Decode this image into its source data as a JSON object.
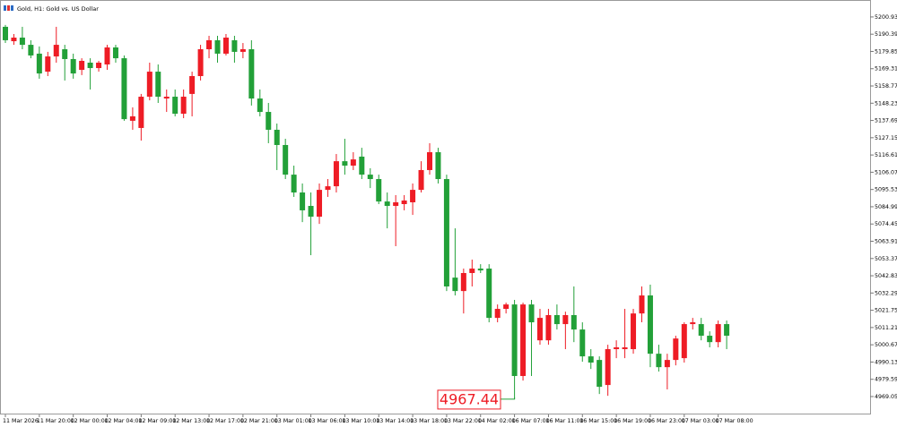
{
  "chart_data": {
    "type": "candlestick",
    "title": "Gold, H1:  Gold vs. US Dollar",
    "annotation": "4967.44",
    "up_color": "#ee1c25",
    "down_color": "#22a038",
    "categories": [
      "11 Mar 2026",
      null,
      null,
      null,
      "11 Mar 20:00",
      null,
      null,
      null,
      "12 Mar 00:00",
      null,
      null,
      null,
      "12 Mar 04:00",
      null,
      null,
      null,
      "12 Mar 09:00",
      null,
      null,
      null,
      "12 Mar 13:00",
      null,
      null,
      null,
      "12 Mar 17:00",
      null,
      null,
      null,
      "12 Mar 21:00",
      null,
      null,
      null,
      "13 Mar 01:00",
      null,
      null,
      null,
      "13 Mar 06:00",
      null,
      null,
      null,
      "13 Mar 10:00",
      null,
      null,
      null,
      "13 Mar 14:00",
      null,
      null,
      null,
      "13 Mar 18:00",
      null,
      null,
      null,
      "13 Mar 22:00",
      null,
      null,
      null,
      "14 Mar 02:00",
      null,
      null,
      null,
      "16 Mar 07:00",
      null,
      null,
      null,
      "16 Mar 11:00",
      null,
      null,
      null,
      "16 Mar 15:00",
      null,
      null,
      null,
      "16 Mar 19:00",
      null,
      null,
      null,
      "16 Mar 23:00",
      null,
      null,
      null,
      "17 Mar 03:00",
      null,
      null,
      null,
      "17 Mar 08:00",
      null
    ],
    "open": [
      5194.9,
      5186.1,
      5188.3,
      5183.9,
      5178.5,
      5167.5,
      5176.8,
      5181.2,
      5175.2,
      5168.6,
      5173.0,
      5169.7,
      5171.9,
      5182.3,
      5175.7,
      5137.5,
      5133.1,
      5152.2,
      5167.5,
      5151.1,
      5152.2,
      5141.8,
      5153.9,
      5164.8,
      5181.2,
      5186.7,
      5178.5,
      5186.7,
      5179.6,
      5181.2,
      5151.1,
      5142.9,
      5132.0,
      5122.7,
      5104.6,
      5093.7,
      5085.5,
      5078.9,
      5095.3,
      5097.5,
      5112.8,
      5110.1,
      5115.6,
      5104.6,
      5101.9,
      5088.2,
      5085.5,
      5086.6,
      5087.7,
      5095.3,
      5107.4,
      5118.3,
      5101.9,
      5041.7,
      5033.5,
      5044.5,
      5047.2,
      5047.2,
      5017.1,
      5022.6,
      5025.3,
      4981.6,
      5025.3,
      5003.4,
      5003.4,
      5018.8,
      5013.3,
      5018.8,
      5010.0,
      4993.6,
      4991.4,
      4976.1,
      4998.0,
      4998.0,
      4998.0,
      5019.8,
      5030.8,
      4995.2,
      4987.0,
      4991.4,
      4992.5,
      5013.3,
      5013.3,
      5006.2,
      5002.3,
      5013.3
    ],
    "high": [
      5196.0,
      5190.5,
      5194.9,
      5186.7,
      5182.9,
      5179.6,
      5194.9,
      5183.9,
      5178.5,
      5175.7,
      5175.7,
      5174.1,
      5183.9,
      5183.9,
      5177.4,
      5145.7,
      5153.9,
      5173.0,
      5171.9,
      5156.6,
      5156.6,
      5156.6,
      5167.5,
      5183.9,
      5189.4,
      5189.4,
      5190.5,
      5189.4,
      5185.0,
      5186.7,
      5156.6,
      5148.4,
      5135.8,
      5126.5,
      5110.1,
      5099.2,
      5093.7,
      5099.2,
      5101.9,
      5117.2,
      5126.5,
      5118.3,
      5121.0,
      5108.5,
      5104.6,
      5093.7,
      5092.1,
      5092.1,
      5099.2,
      5112.8,
      5123.8,
      5121.0,
      5104.6,
      5071.8,
      5047.2,
      5052.7,
      5049.9,
      5049.9,
      5025.3,
      5026.4,
      5028.1,
      5026.4,
      5028.1,
      5022.6,
      5022.6,
      5025.3,
      5020.9,
      5036.3,
      5014.4,
      4998.0,
      4993.6,
      5000.7,
      5003.4,
      5022.6,
      5022.6,
      5036.3,
      5037.4,
      5000.7,
      4995.2,
      5006.2,
      5014.4,
      5017.1,
      5017.1,
      5008.9,
      5015.5,
      5015.5
    ],
    "low": [
      5185.0,
      5183.9,
      5181.2,
      5175.7,
      5163.2,
      5164.8,
      5173.0,
      5162.1,
      5163.2,
      5165.4,
      5156.6,
      5167.5,
      5168.6,
      5173.0,
      5137.5,
      5132.0,
      5125.4,
      5150.0,
      5148.4,
      5142.9,
      5140.2,
      5139.1,
      5140.2,
      5162.1,
      5175.7,
      5173.0,
      5177.4,
      5173.0,
      5175.7,
      5146.8,
      5140.2,
      5123.8,
      5107.4,
      5101.9,
      5091.0,
      5075.6,
      5055.4,
      5074.5,
      5091.0,
      5093.7,
      5104.6,
      5107.4,
      5101.9,
      5096.4,
      5086.6,
      5071.8,
      5060.9,
      5082.8,
      5080.0,
      5093.7,
      5104.6,
      5099.2,
      5033.5,
      5030.8,
      5019.8,
      5036.3,
      5044.5,
      5014.4,
      5014.4,
      5019.8,
      4967.44,
      4978.8,
      4981.6,
      5000.7,
      5000.7,
      5010.0,
      4998.0,
      5002.3,
      4990.3,
      4985.9,
      4970.6,
      4969.5,
      4992.5,
      4992.5,
      4995.2,
      5014.4,
      4987.0,
      4984.3,
      4973.4,
      4988.1,
      4989.8,
      5010.0,
      5003.4,
      4999.1,
      4999.1,
      4998.0
    ],
    "close": [
      5186.7,
      5188.3,
      5183.9,
      5177.4,
      5166.4,
      5176.8,
      5183.9,
      5175.2,
      5166.4,
      5174.1,
      5169.7,
      5173.0,
      5182.3,
      5175.7,
      5138.5,
      5140.2,
      5152.2,
      5167.5,
      5152.2,
      5152.2,
      5141.8,
      5152.2,
      5164.8,
      5181.2,
      5186.7,
      5178.5,
      5188.3,
      5179.6,
      5181.2,
      5151.1,
      5142.9,
      5132.0,
      5122.7,
      5104.6,
      5093.7,
      5082.8,
      5078.9,
      5095.3,
      5097.5,
      5112.8,
      5110.1,
      5113.9,
      5104.6,
      5101.9,
      5088.2,
      5085.5,
      5087.7,
      5088.8,
      5095.3,
      5107.4,
      5118.3,
      5101.9,
      5036.3,
      5033.5,
      5044.5,
      5047.2,
      5046.1,
      5017.1,
      5022.6,
      5025.3,
      4981.6,
      5025.3,
      5014.4,
      5017.1,
      5018.8,
      5013.3,
      5018.8,
      5010.0,
      4993.6,
      4989.8,
      4975.0,
      4998.0,
      4999.1,
      4999.1,
      5019.8,
      5030.8,
      4995.2,
      4987.0,
      4991.4,
      5004.5,
      5013.3,
      5014.4,
      5006.2,
      5002.3,
      5013.3,
      5006.2
    ],
    "ylim": [
      4958.1,
      5206.9
    ],
    "yticks": [
      5200.93,
      5190.39,
      5179.85,
      5169.31,
      5158.77,
      5148.23,
      5137.69,
      5127.15,
      5116.61,
      5106.07,
      5095.53,
      5084.99,
      5074.45,
      5063.91,
      5053.37,
      5042.83,
      5032.29,
      5021.75,
      5011.21,
      5000.67,
      4990.13,
      4979.59,
      4969.05
    ]
  }
}
